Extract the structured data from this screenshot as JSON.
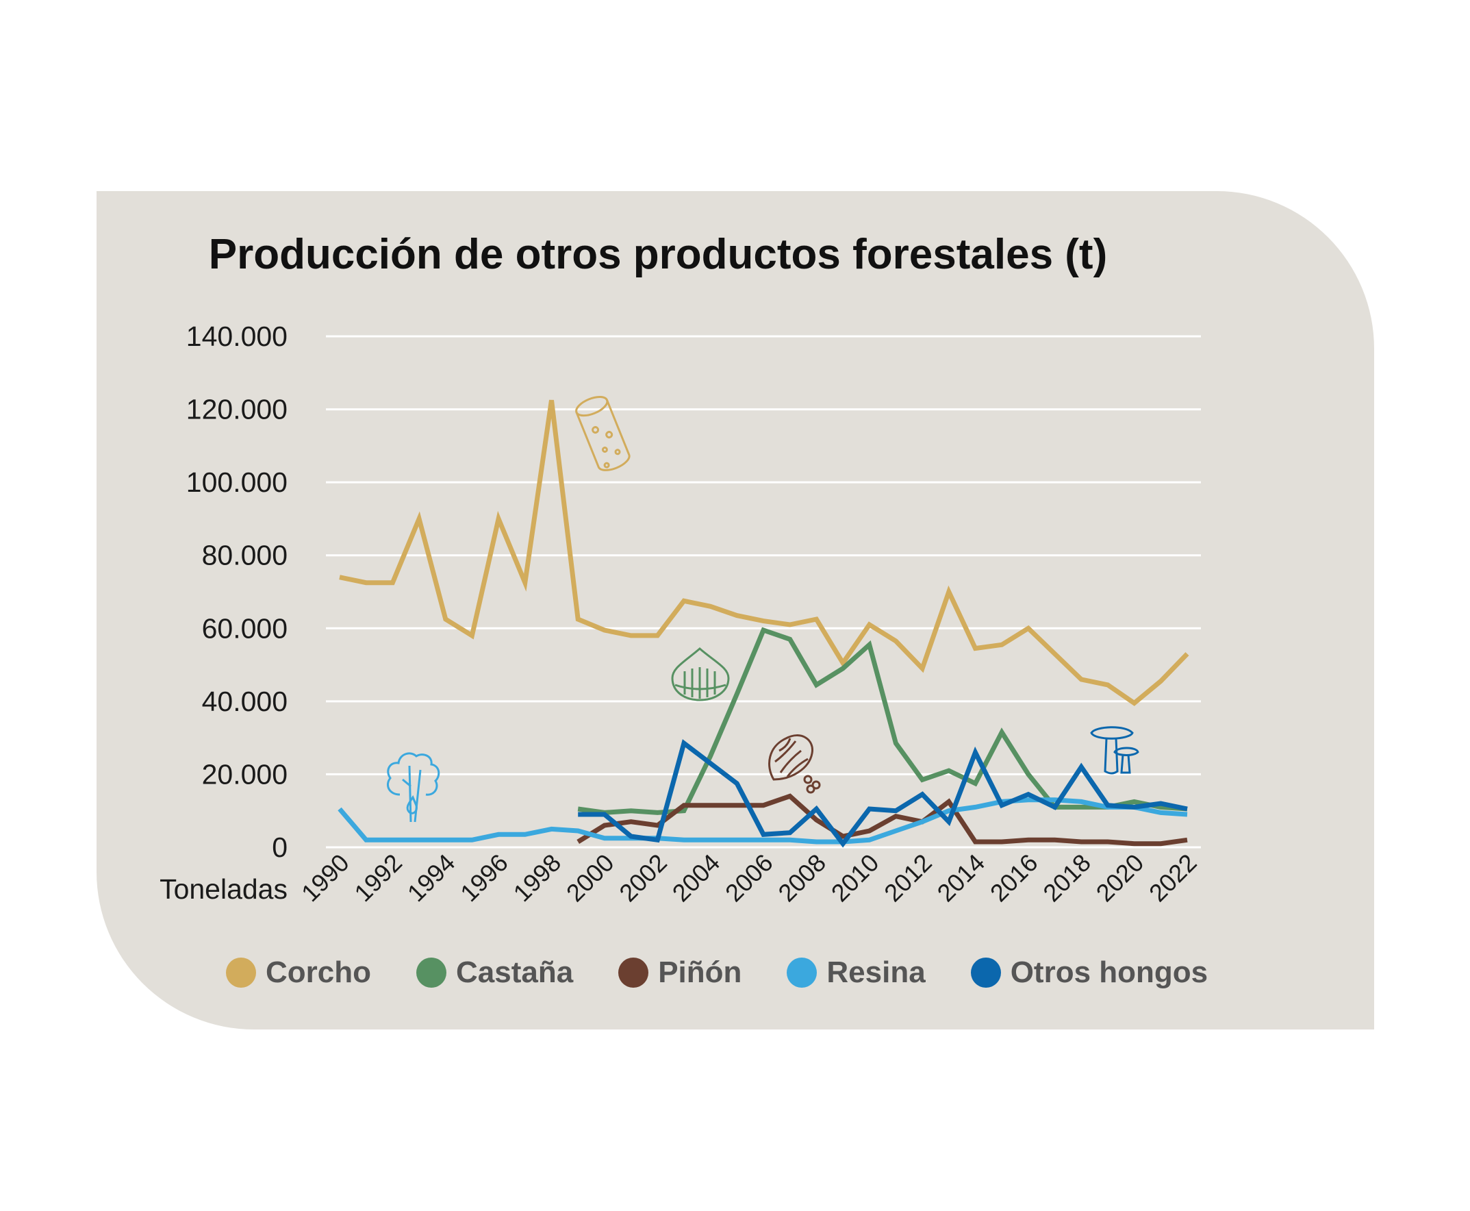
{
  "chart_data": {
    "type": "line",
    "title": "Producción de otros productos forestales (t)",
    "ylabel": "Toneladas",
    "xlabel": "",
    "ylim": [
      0,
      140000
    ],
    "yticks": [
      0,
      20000,
      40000,
      60000,
      80000,
      100000,
      120000,
      140000
    ],
    "ytick_labels": [
      "0",
      "20.000",
      "40.000",
      "60.000",
      "80.000",
      "100.000",
      "120.000",
      "140.000"
    ],
    "xlim": [
      1990,
      2022
    ],
    "xticks": [
      1990,
      1992,
      1994,
      1996,
      1998,
      2000,
      2002,
      2004,
      2006,
      2008,
      2010,
      2012,
      2014,
      2016,
      2018,
      2020,
      2022
    ],
    "xtick_labels": [
      "1990",
      "1992",
      "1994",
      "1996",
      "1998",
      "2000",
      "2002",
      "2004",
      "2006",
      "2008",
      "2010",
      "2012",
      "2014",
      "2016",
      "2018",
      "2020",
      "2022"
    ],
    "grid": true,
    "legend_position": "bottom",
    "series": [
      {
        "name": "Corcho",
        "color": "#d2ac5c",
        "icon": "cork-icon",
        "x": [
          1990,
          1991,
          1992,
          1993,
          1994,
          1995,
          1996,
          1997,
          1998,
          1999,
          2000,
          2001,
          2002,
          2003,
          2004,
          2005,
          2006,
          2007,
          2008,
          2009,
          2010,
          2011,
          2012,
          2013,
          2014,
          2015,
          2016,
          2017,
          2018,
          2019,
          2020,
          2021,
          2022
        ],
        "values": [
          74000,
          72500,
          72500,
          90000,
          62500,
          58000,
          90000,
          72500,
          122500,
          62500,
          59500,
          58000,
          58000,
          67500,
          66000,
          63500,
          62000,
          61000,
          62500,
          50500,
          61000,
          56500,
          49000,
          70000,
          54500,
          55500,
          60000,
          53000,
          46000,
          44500,
          39500,
          45500,
          53000
        ]
      },
      {
        "name": "Castaña",
        "color": "#579162",
        "icon": "chestnut-icon",
        "x": [
          1999,
          2000,
          2001,
          2002,
          2003,
          2004,
          2005,
          2006,
          2007,
          2008,
          2009,
          2010,
          2011,
          2012,
          2013,
          2014,
          2015,
          2016,
          2017,
          2018,
          2019,
          2020,
          2021,
          2022
        ],
        "values": [
          10500,
          9500,
          10000,
          9500,
          10000,
          25000,
          42000,
          59500,
          57000,
          44500,
          49000,
          55500,
          28500,
          18500,
          21000,
          17500,
          31500,
          20000,
          11000,
          11000,
          11000,
          12500,
          11000,
          10500
        ]
      },
      {
        "name": "Piñón",
        "color": "#6b3f30",
        "icon": "pinecone-icon",
        "x": [
          1999,
          2000,
          2001,
          2002,
          2003,
          2004,
          2005,
          2006,
          2007,
          2008,
          2009,
          2010,
          2011,
          2012,
          2013,
          2014,
          2015,
          2016,
          2017,
          2018,
          2019,
          2020,
          2021,
          2022
        ],
        "values": [
          1500,
          6000,
          7000,
          6000,
          11500,
          11500,
          11500,
          11500,
          14000,
          7500,
          3000,
          4500,
          8500,
          7000,
          12500,
          1500,
          1500,
          2000,
          2000,
          1500,
          1500,
          1000,
          1000,
          2000
        ]
      },
      {
        "name": "Resina",
        "color": "#3ba8de",
        "icon": "resin-tree-icon",
        "x": [
          1990,
          1991,
          1992,
          1993,
          1994,
          1995,
          1996,
          1997,
          1998,
          1999,
          2000,
          2001,
          2002,
          2003,
          2004,
          2005,
          2006,
          2007,
          2008,
          2009,
          2010,
          2011,
          2012,
          2013,
          2014,
          2015,
          2016,
          2017,
          2018,
          2019,
          2020,
          2021,
          2022
        ],
        "values": [
          10500,
          2000,
          2000,
          2000,
          2000,
          2000,
          3500,
          3500,
          5000,
          4500,
          2500,
          2500,
          2500,
          2000,
          2000,
          2000,
          2000,
          2000,
          1500,
          1500,
          2000,
          4500,
          7000,
          10000,
          11000,
          12500,
          13000,
          13000,
          12500,
          11000,
          11000,
          9500,
          9000
        ]
      },
      {
        "name": "Otros hongos",
        "color": "#0b67ad",
        "icon": "mushroom-icon",
        "x": [
          1999,
          2000,
          2001,
          2002,
          2003,
          2004,
          2005,
          2006,
          2007,
          2008,
          2009,
          2010,
          2011,
          2012,
          2013,
          2014,
          2015,
          2016,
          2017,
          2018,
          2019,
          2020,
          2021,
          2022
        ],
        "values": [
          9000,
          9000,
          3000,
          2000,
          28500,
          23000,
          17500,
          3500,
          4000,
          10500,
          1000,
          10500,
          10000,
          14500,
          7000,
          26000,
          11500,
          14500,
          11000,
          22000,
          11500,
          11000,
          12000,
          10500
        ]
      }
    ]
  }
}
